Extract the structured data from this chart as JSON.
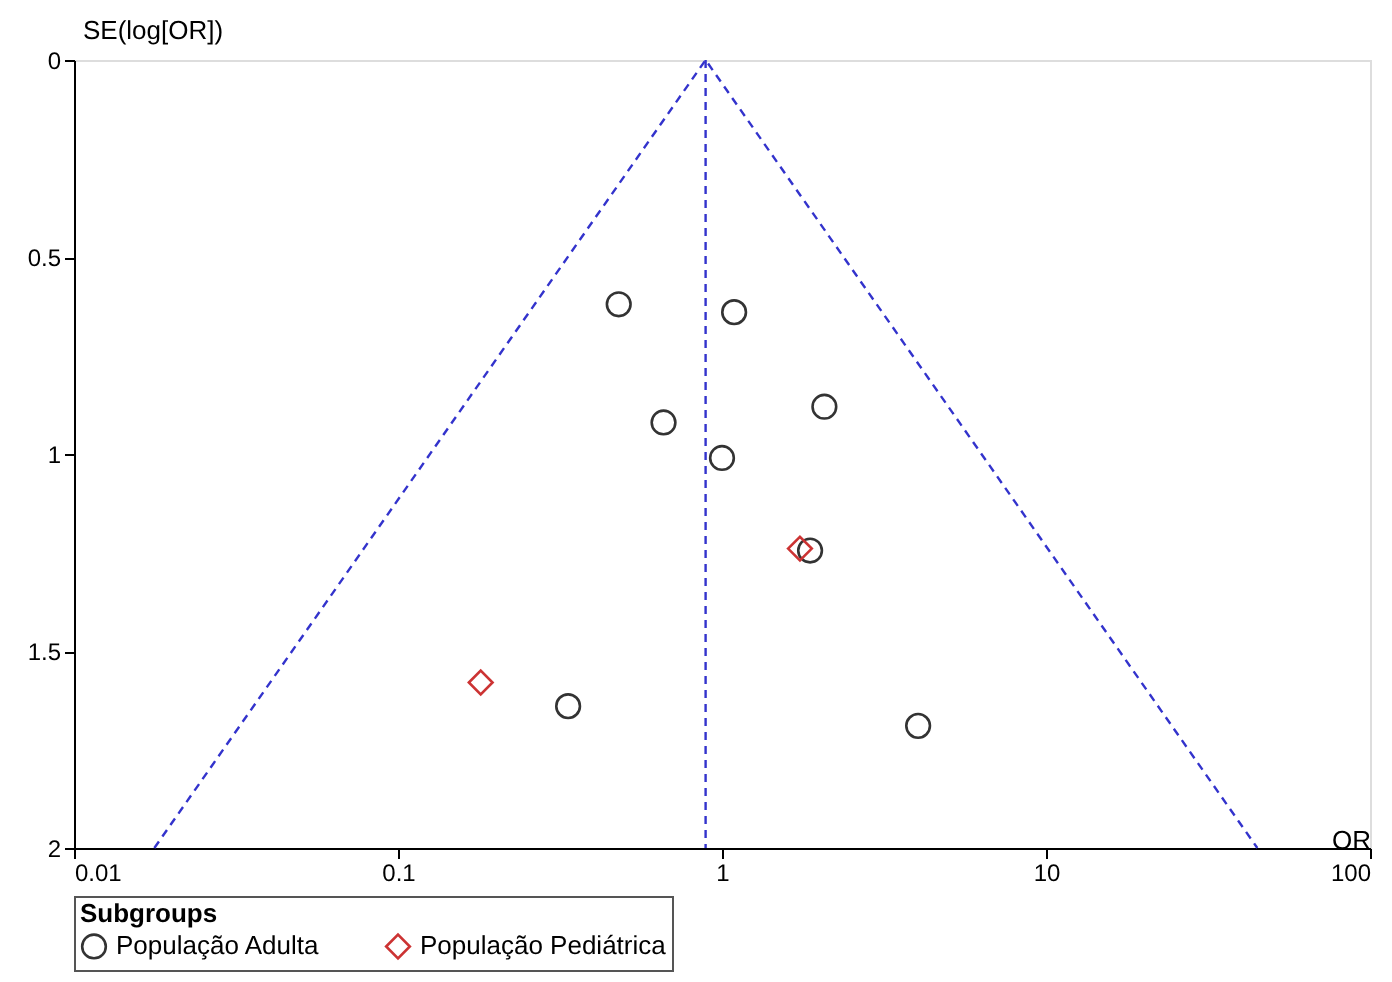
{
  "chart_data": {
    "type": "scatter",
    "xlabel": "OR",
    "ylabel": "SE(log[OR])",
    "legend_title": "Subgroups",
    "legend": "bottom",
    "log": "x",
    "grid": false,
    "xlim": [
      0.01,
      100
    ],
    "xticks": [
      0.01,
      0.1,
      1,
      10,
      100
    ],
    "ylim": [
      2,
      0
    ],
    "yticks": [
      0,
      0.5,
      1,
      1.5,
      2
    ],
    "series": [
      {
        "name": "População Adulta",
        "color": "#333333",
        "marker": "circle",
        "x": [
          0.48,
          1.09,
          0.66,
          2.07,
          1.0,
          1.87,
          0.335,
          4.03
        ],
        "values": [
          0.62,
          0.64,
          0.92,
          0.88,
          1.01,
          1.245,
          1.64,
          1.69
        ]
      },
      {
        "name": "População Pediátrica",
        "color": "#cc3333",
        "marker": "diamond",
        "x": [
          1.74,
          0.18
        ],
        "values": [
          1.24,
          1.58
        ]
      },
      {
        "type": "line",
        "color": "#3333cc",
        "line_style": "dashed",
        "marker": "none",
        "x": [
          0.0177,
          0.89,
          44.9
        ],
        "values": [
          2,
          0,
          2
        ]
      }
    ],
    "ref_lines": [
      {
        "axis": "x",
        "value": 0.89,
        "color": "#3333cc",
        "line_style": "dashed"
      }
    ]
  }
}
